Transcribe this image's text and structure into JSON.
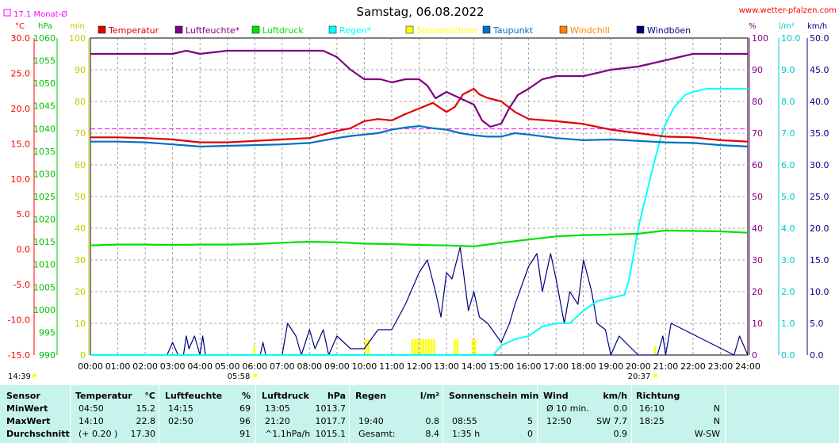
{
  "title": "Samstag, 06.08.2022",
  "site": "www.wetter-pfalzen.com",
  "month_avg_label": "17.1 Monat-Ø",
  "units_left": [
    "°C",
    "hPa",
    "min"
  ],
  "units_right": [
    "%",
    "l/m²",
    "km/h"
  ],
  "legend": [
    {
      "label": "Temperatur",
      "color": "#e00000"
    },
    {
      "label": "Luftfeuchte*",
      "color": "#800080"
    },
    {
      "label": "Luftdruck",
      "color": "#00e000"
    },
    {
      "label": "Regen*",
      "color": "#00ffff"
    },
    {
      "label": "Sonnenschein",
      "color": "#ffff00"
    },
    {
      "label": "Taupunkt",
      "color": "#0070c0"
    },
    {
      "label": "Windchill",
      "color": "#ff8000"
    },
    {
      "label": "Windböen",
      "color": "#000080"
    }
  ],
  "colors": {
    "temp": "#e00000",
    "hum": "#800080",
    "press": "#00e000",
    "rain": "#00ffff",
    "sun": "#ffff00",
    "dew": "#0070c0",
    "gust": "#000080",
    "avg": "#ff00ff",
    "table_bg": "#c6f4ec"
  },
  "sunrise": "05:58",
  "sunset": "20:37",
  "chart_data": {
    "type": "line",
    "title": "Samstag, 06.08.2022",
    "x_ticks": [
      "00:00",
      "01:00",
      "02:00",
      "03:00",
      "04:00",
      "05:00",
      "06:00",
      "07:00",
      "08:00",
      "09:00",
      "10:00",
      "11:00",
      "12:00",
      "13:00",
      "14:00",
      "15:00",
      "16:00",
      "17:00",
      "18:00",
      "19:00",
      "20:00",
      "21:00",
      "22:00",
      "23:00",
      "24:00"
    ],
    "axes": {
      "temp_c": {
        "ticks": [
          "30.0",
          "25.0",
          "20.0",
          "15.0",
          "10.0",
          "5.0",
          "0.0",
          "-5.0",
          "-10.0",
          "-15.0"
        ],
        "ylim": [
          -15,
          30
        ]
      },
      "pressure_hpa": {
        "ticks": [
          "1060",
          "1055",
          "1050",
          "1045",
          "1040",
          "1035",
          "1030",
          "1025",
          "1020",
          "1015",
          "1010",
          "1005",
          "1000",
          "995",
          "990"
        ],
        "ylim": [
          990,
          1060
        ]
      },
      "sun_min": {
        "ticks": [
          "100",
          "90",
          "80",
          "70",
          "60",
          "50",
          "40",
          "30",
          "20",
          "10",
          "0"
        ],
        "ylim": [
          0,
          100
        ]
      },
      "humidity_pct": {
        "ticks": [
          "100",
          "90",
          "80",
          "70",
          "60",
          "50",
          "40",
          "30",
          "20",
          "10",
          "0"
        ],
        "ylim": [
          0,
          100
        ]
      },
      "rain_lm2": {
        "ticks": [
          "10.0",
          "9.0",
          "8.0",
          "7.0",
          "6.0",
          "5.0",
          "4.0",
          "3.0",
          "2.0",
          "1.0",
          "0.0"
        ],
        "ylim": [
          0,
          10
        ]
      },
      "wind_kmh": {
        "ticks": [
          "50.0",
          "45.0",
          "40.0",
          "35.0",
          "30.0",
          "25.0",
          "20.0",
          "15.0",
          "10.0",
          "5.0",
          "0.0"
        ],
        "ylim": [
          0,
          50
        ]
      }
    },
    "grid": true,
    "month_avg_temp": 17.1,
    "series": [
      {
        "name": "Temperatur",
        "axis": "temp_c",
        "x": [
          0,
          1,
          2,
          3,
          4,
          5,
          6,
          7,
          8,
          9,
          9.5,
          10,
          10.5,
          11,
          11.5,
          12,
          12.5,
          13,
          13.3,
          13.6,
          14,
          14.2,
          14.5,
          15,
          15.5,
          16,
          17,
          18,
          19,
          20,
          21,
          22,
          23,
          24
        ],
        "y": [
          15.9,
          15.9,
          15.8,
          15.6,
          15.2,
          15.2,
          15.4,
          15.6,
          15.8,
          16.8,
          17.2,
          18.2,
          18.5,
          18.3,
          19.2,
          20.0,
          20.8,
          19.5,
          20.2,
          22.0,
          22.8,
          22.0,
          21.5,
          21.0,
          19.5,
          18.5,
          18.2,
          17.8,
          17.0,
          16.5,
          16.0,
          15.9,
          15.5,
          15.3
        ]
      },
      {
        "name": "Luftfeuchte*",
        "axis": "humidity_pct",
        "x": [
          0,
          1,
          2,
          3,
          3.5,
          4,
          5,
          6,
          7,
          8,
          8.5,
          9,
          9.5,
          10,
          10.3,
          10.6,
          11,
          11.5,
          12,
          12.3,
          12.6,
          13,
          13.5,
          14,
          14.3,
          14.6,
          15,
          15.3,
          15.6,
          16,
          16.5,
          17,
          18,
          19,
          20,
          21,
          22,
          23,
          24
        ],
        "y": [
          95,
          95,
          95,
          95,
          96,
          95,
          96,
          96,
          96,
          96,
          96,
          94,
          90,
          87,
          87,
          87,
          86,
          87,
          87,
          85,
          81,
          83,
          81,
          79,
          74,
          72,
          73,
          78,
          82,
          84,
          87,
          88,
          88,
          90,
          91,
          93,
          95,
          95,
          95
        ]
      },
      {
        "name": "Luftdruck",
        "axis": "pressure_hpa",
        "x": [
          0,
          1,
          2,
          3,
          4,
          5,
          6,
          7,
          8,
          9,
          10,
          11,
          12,
          13,
          14,
          15,
          16,
          17,
          18,
          19,
          20,
          21,
          22,
          23,
          24
        ],
        "y": [
          1014.2,
          1014.4,
          1014.4,
          1014.3,
          1014.4,
          1014.4,
          1014.5,
          1014.8,
          1015.0,
          1014.9,
          1014.6,
          1014.5,
          1014.3,
          1014.2,
          1014.0,
          1014.8,
          1015.5,
          1016.2,
          1016.5,
          1016.6,
          1016.8,
          1017.5,
          1017.4,
          1017.3,
          1017.0
        ]
      },
      {
        "name": "Regen*",
        "axis": "rain_lm2",
        "x": [
          0,
          14.7,
          15,
          15.5,
          16,
          16.5,
          17,
          17.5,
          18,
          18.5,
          19,
          19.5,
          19.67,
          20,
          20.5,
          20.8,
          21,
          21.3,
          21.7,
          22,
          22.5,
          23,
          24
        ],
        "y": [
          0,
          0,
          0.3,
          0.5,
          0.6,
          0.9,
          1.0,
          1.0,
          1.4,
          1.7,
          1.8,
          1.9,
          2.4,
          4.0,
          5.8,
          6.8,
          7.3,
          7.8,
          8.2,
          8.3,
          8.4,
          8.4,
          8.4
        ]
      },
      {
        "name": "Taupunkt",
        "axis": "temp_c",
        "x": [
          0,
          1,
          2,
          3,
          4,
          5,
          6,
          7,
          8,
          9,
          9.5,
          10,
          10.5,
          11,
          11.5,
          12,
          12.5,
          13,
          13.5,
          14,
          14.5,
          15,
          15.5,
          16,
          17,
          18,
          19,
          20,
          21,
          22,
          23,
          24
        ],
        "y": [
          15.3,
          15.3,
          15.2,
          14.9,
          14.6,
          14.7,
          14.8,
          14.9,
          15.1,
          15.8,
          16.1,
          16.3,
          16.5,
          17.0,
          17.3,
          17.5,
          17.2,
          17.0,
          16.5,
          16.2,
          16.0,
          16.0,
          16.5,
          16.3,
          15.8,
          15.5,
          15.6,
          15.4,
          15.2,
          15.1,
          14.8,
          14.6
        ]
      },
      {
        "name": "Windböen",
        "axis": "wind_kmh",
        "x": [
          0,
          2.8,
          3,
          3.2,
          3.4,
          3.5,
          3.6,
          3.8,
          4,
          4.1,
          4.2,
          6.2,
          6.3,
          6.4,
          6.6,
          7,
          7.2,
          7.5,
          7.7,
          8,
          8.2,
          8.5,
          8.7,
          9,
          9.5,
          10,
          10.5,
          11,
          11.5,
          12,
          12.3,
          12.6,
          12.8,
          13,
          13.2,
          13.5,
          13.8,
          14,
          14.2,
          14.5,
          15,
          15.3,
          15.5,
          16,
          16.3,
          16.5,
          16.8,
          17,
          17.3,
          17.5,
          17.8,
          18,
          18.3,
          18.5,
          18.8,
          19,
          19.3,
          20,
          20.5,
          20.7,
          20.9,
          21,
          21.2,
          23.5,
          23.7,
          24
        ],
        "y": [
          0,
          0,
          2,
          0,
          0,
          3,
          1,
          3,
          0,
          3,
          0,
          0,
          2,
          0,
          0,
          0,
          5,
          3,
          0,
          4,
          1,
          4,
          0,
          3,
          1,
          1,
          4,
          4,
          8,
          13,
          15,
          10,
          6,
          13,
          12,
          17,
          7,
          10,
          6,
          5,
          2,
          5,
          8,
          14,
          16,
          10,
          16,
          12,
          5,
          10,
          8,
          15,
          10,
          5,
          4,
          0,
          3,
          0,
          0,
          0,
          3,
          0,
          5,
          0,
          3,
          0
        ]
      }
    ],
    "sunshine": {
      "axis": "sun_min",
      "x": [
        5.98,
        10.05,
        10.15,
        11.75,
        11.85,
        11.95,
        12.05,
        12.15,
        12.25,
        12.35,
        12.45,
        12.55,
        13.3,
        13.4,
        13.95,
        14.05,
        20.62
      ],
      "y": [
        3,
        5,
        5,
        5,
        5,
        5,
        5,
        5,
        5,
        5,
        5,
        5,
        5,
        5,
        5,
        5,
        3
      ]
    }
  },
  "table": {
    "headers": [
      {
        "label": "Sensor",
        "unit": ""
      },
      {
        "label": "Temperatur",
        "unit": "°C"
      },
      {
        "label": "Luftfeuchte",
        "unit": "%"
      },
      {
        "label": "Luftdruck",
        "unit": "hPa"
      },
      {
        "label": "Regen",
        "unit": "l/m²"
      },
      {
        "label": "Sonnenschein min",
        "unit": ""
      },
      {
        "label": "Wind",
        "unit": "km/h"
      },
      {
        "label": "Richtung",
        "unit": ""
      }
    ],
    "rows": [
      {
        "label": "MinWert",
        "cells": [
          [
            "04:50",
            "15.2"
          ],
          [
            "14:15",
            "69"
          ],
          [
            "13:05",
            "1013.7"
          ],
          [
            "",
            ""
          ],
          [
            "",
            ""
          ],
          [
            "Ø 10 min.",
            "0.0"
          ],
          [
            "16:10",
            "N"
          ]
        ]
      },
      {
        "label": "MaxWert",
        "cells": [
          [
            "14:10",
            "22.8"
          ],
          [
            "02:50",
            "96"
          ],
          [
            "21:20",
            "1017.7"
          ],
          [
            "19:40",
            "0.8"
          ],
          [
            "08:55",
            "5"
          ],
          [
            "12:50",
            "SW 7.7"
          ],
          [
            "18:25",
            "N"
          ]
        ]
      },
      {
        "label": "Durchschnitt",
        "cells": [
          [
            "(+ 0.20 )",
            "17.30"
          ],
          [
            "",
            "91"
          ],
          [
            "^1.1hPa/h",
            "1015.1"
          ],
          [
            "Gesamt:",
            "8.4"
          ],
          [
            "1:35 h",
            "0"
          ],
          [
            "",
            "0.9"
          ],
          [
            "",
            "W-SW"
          ]
        ]
      }
    ]
  }
}
